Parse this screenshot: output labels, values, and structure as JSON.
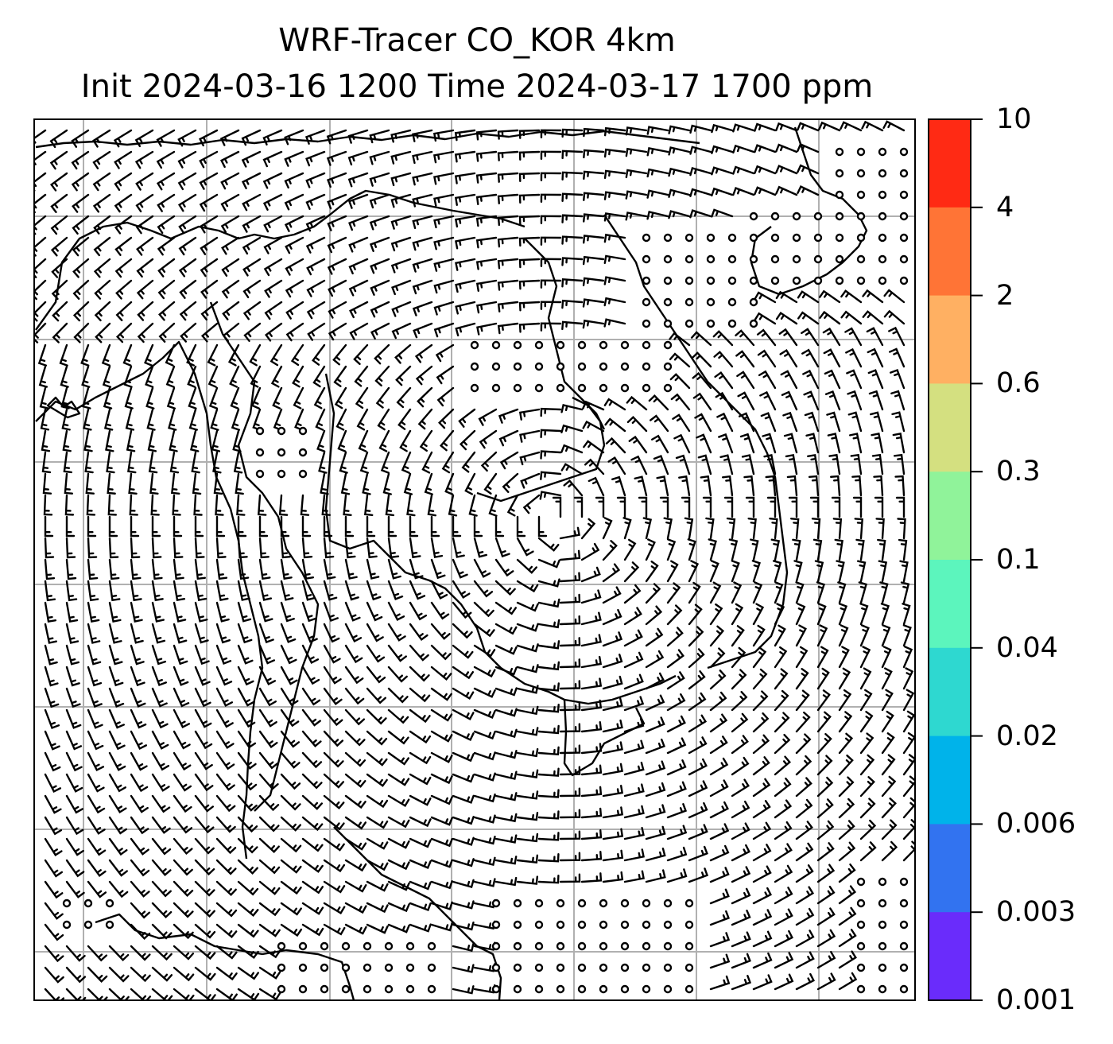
{
  "title": {
    "line1": "WRF-Tracer CO_KOR 4km",
    "line2": "Init 2024-03-16 1200 Time 2024-03-17 1700 ppm"
  },
  "colorbar": {
    "labels": [
      "10",
      "4",
      "2",
      "0.6",
      "0.3",
      "0.1",
      "0.04",
      "0.02",
      "0.006",
      "0.003",
      "0.001"
    ],
    "colors_top_to_bottom": [
      "#ff2a14",
      "#ff7436",
      "#ffb062",
      "#d4e080",
      "#90f39a",
      "#5cf5bd",
      "#2ed8d0",
      "#00b3ea",
      "#3273f0",
      "#6a2cfb"
    ]
  },
  "map": {
    "gridline_color": "#b0b0b0",
    "coastline_color": "#000000",
    "wind_symbol": "wind-barb",
    "calm_symbol": "calm-circle"
  }
}
